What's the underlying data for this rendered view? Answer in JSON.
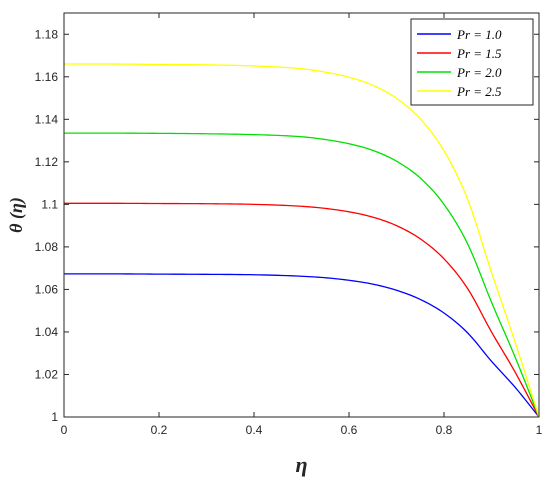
{
  "chart_data": {
    "type": "line",
    "xlabel": "η",
    "ylabel": "θ (η)",
    "xlim": [
      0,
      1
    ],
    "ylim": [
      1,
      1.19
    ],
    "xticks": [
      0,
      0.2,
      0.4,
      0.6,
      0.8,
      1
    ],
    "xtick_labels": [
      "0",
      "0.2",
      "0.4",
      "0.6",
      "0.8",
      "1"
    ],
    "yticks": [
      1,
      1.02,
      1.04,
      1.06,
      1.08,
      1.1,
      1.12,
      1.14,
      1.16,
      1.18
    ],
    "ytick_labels": [
      "1",
      "1.02",
      "1.04",
      "1.06",
      "1.08",
      "1.1",
      "1.12",
      "1.14",
      "1.16",
      "1.18"
    ],
    "grid": false,
    "legend_position": "top-right",
    "x": [
      0,
      0.1,
      0.2,
      0.3,
      0.4,
      0.5,
      0.55,
      0.6,
      0.65,
      0.7,
      0.75,
      0.8,
      0.85,
      0.9,
      0.95,
      1.0
    ],
    "series": [
      {
        "name": "Pr = 1.0",
        "color": "#0000ff",
        "values": [
          1.0673,
          1.0673,
          1.0672,
          1.0671,
          1.0669,
          1.0662,
          1.0655,
          1.0643,
          1.0625,
          1.0596,
          1.0553,
          1.0489,
          1.0395,
          1.0262,
          1.0139,
          1.0
        ]
      },
      {
        "name": "Pr = 1.5",
        "color": "#ff0000",
        "values": [
          1.1005,
          1.1005,
          1.1004,
          1.1003,
          1.1,
          1.0991,
          1.0981,
          1.0965,
          1.094,
          1.09,
          1.0838,
          1.0744,
          1.0603,
          1.04,
          1.021,
          1.0
        ]
      },
      {
        "name": "Pr = 2.0",
        "color": "#00e000",
        "values": [
          1.1335,
          1.1335,
          1.1334,
          1.1332,
          1.1328,
          1.1318,
          1.1305,
          1.1285,
          1.1254,
          1.1203,
          1.1124,
          1.1,
          1.0813,
          1.054,
          1.028,
          1.0
        ]
      },
      {
        "name": "Pr = 2.5",
        "color": "#ffff00",
        "values": [
          1.166,
          1.166,
          1.1658,
          1.1656,
          1.1651,
          1.1638,
          1.1622,
          1.1598,
          1.156,
          1.1499,
          1.1402,
          1.1252,
          1.1022,
          1.068,
          1.035,
          1.0
        ]
      }
    ]
  }
}
